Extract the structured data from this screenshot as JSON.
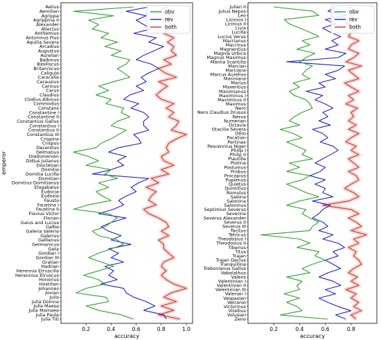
{
  "chart_data": [
    {
      "type": "line",
      "orientation": "horizontal",
      "xlabel": "accuracy",
      "ylabel": "emperor",
      "xlim": [
        0.0,
        1.05
      ],
      "xticks": [
        "0.2",
        "0.4",
        "0.6",
        "0.8",
        "1.0"
      ],
      "legend_position": "top-right",
      "series_colors": {
        "obv": "#2ca02c",
        "rev": "#1f1fcf",
        "both": "#c0392b"
      },
      "categories": [
        "Aelius",
        "Aemilian",
        "Agrippa",
        "Agrippina II",
        "Alexander",
        "Allectus",
        "Anthemius",
        "Antoninus Pius",
        "Aquilia Severa",
        "Arcadius",
        "Augustus",
        "Aurelian",
        "Balbinus",
        "Basiliscus",
        "Britannicus",
        "Caligula",
        "Caracalla",
        "Carausius",
        "Carinus",
        "Carus",
        "Claudius",
        "Clodius Albinus",
        "Commodus",
        "Constans",
        "Constantine I",
        "Constantine II",
        "Constantius Gallus",
        "Constantius I",
        "Constantius II",
        "Constantius III",
        "Crispina",
        "Crispus",
        "Decentius",
        "Delmatius",
        "Diadumenian",
        "Didius Julianus",
        "Diocletian",
        "Domitia",
        "Domitia Lucilla",
        "Domitian",
        "Domitius Domitianus",
        "Elagabalus",
        "Eudocia",
        "Eudoxia",
        "Fausta",
        "Faustina I",
        "Faustina II",
        "Flavius Victor",
        "Florian",
        "Gaius and Lucius",
        "Galba",
        "Galeria Valeria",
        "Galerius",
        "Gallienus",
        "Germanicus",
        "Geta",
        "Gordian I",
        "Gordian III",
        "Gratian",
        "Hadrian",
        "Herennia Etruscilla",
        "Herennius Etruscus",
        "Honorius",
        "Hostilian",
        "Johannes",
        "Jovian",
        "Julia",
        "Julia Domna",
        "Julia Maesa",
        "Julia Mamaea",
        "Julia Paula",
        "Julia Titi"
      ],
      "series": [
        {
          "name": "obv",
          "values": [
            0.58,
            0.1,
            0.42,
            0.22,
            0.3,
            0.25,
            0.38,
            0.32,
            0.45,
            0.35,
            0.48,
            0.4,
            0.55,
            0.52,
            0.45,
            0.5,
            0.55,
            0.42,
            0.3,
            0.38,
            0.28,
            0.4,
            0.36,
            0.5,
            0.48,
            0.55,
            0.45,
            0.4,
            0.52,
            0.46,
            0.4,
            0.32,
            0.28,
            0.1,
            0.22,
            0.3,
            0.2,
            0.4,
            0.35,
            0.45,
            0.3,
            0.38,
            0.28,
            0.33,
            0.4,
            0.22,
            0.1,
            0.38,
            0.45,
            0.4,
            0.35,
            0.25,
            0.3,
            0.45,
            0.5,
            0.4,
            0.3,
            0.22,
            0.32,
            0.42,
            0.3,
            0.18,
            0.3,
            0.35,
            0.2,
            0.12,
            0.36,
            0.38,
            0.2,
            0.3,
            0.48,
            0.58
          ]
        },
        {
          "name": "rev",
          "values": [
            0.7,
            0.52,
            0.68,
            0.6,
            0.66,
            0.72,
            0.58,
            0.76,
            0.7,
            0.82,
            0.74,
            0.66,
            0.6,
            0.72,
            0.78,
            0.7,
            0.64,
            0.68,
            0.6,
            0.66,
            0.55,
            0.5,
            0.62,
            0.56,
            0.66,
            0.7,
            0.66,
            0.66,
            0.7,
            0.58,
            0.62,
            0.64,
            0.46,
            0.38,
            0.52,
            0.45,
            0.5,
            0.4,
            0.25,
            0.7,
            0.62,
            0.56,
            0.6,
            0.52,
            0.46,
            0.5,
            0.42,
            0.3,
            0.52,
            0.4,
            0.32,
            0.38,
            0.48,
            0.4,
            0.56,
            0.38,
            0.46,
            0.4,
            0.5,
            0.35,
            0.42,
            0.38,
            0.45,
            0.32,
            0.5,
            0.52,
            0.58,
            0.68,
            0.75,
            0.66,
            0.82,
            0.84
          ]
        },
        {
          "name": "both",
          "values": [
            0.85,
            0.78,
            0.9,
            0.82,
            0.88,
            0.86,
            0.82,
            0.9,
            0.85,
            0.9,
            0.88,
            0.92,
            0.82,
            0.88,
            0.78,
            0.83,
            0.92,
            0.78,
            0.85,
            0.8,
            0.76,
            0.8,
            0.9,
            0.84,
            0.9,
            0.86,
            0.94,
            0.92,
            0.88,
            1.0,
            0.92,
            0.86,
            0.84,
            0.86,
            0.8,
            0.82,
            0.9,
            0.8,
            0.86,
            0.72,
            0.78,
            0.68,
            0.76,
            0.72,
            0.7,
            0.76,
            0.66,
            0.7,
            0.78,
            0.84,
            0.86,
            0.8,
            0.86,
            0.78,
            0.82,
            0.82,
            0.86,
            0.9,
            0.82,
            0.8,
            0.84,
            0.8,
            0.84,
            0.9,
            1.0,
            0.88,
            0.82,
            0.92,
            0.8,
            0.9,
            0.78,
            0.95
          ]
        }
      ]
    },
    {
      "type": "line",
      "orientation": "horizontal",
      "xlabel": "accuracy",
      "ylabel": "",
      "xlim": [
        0.0,
        1.0
      ],
      "xticks": [
        "0.2",
        "0.4",
        "0.6",
        "0.8"
      ],
      "legend_position": "top-right",
      "series_colors": {
        "obv": "#2ca02c",
        "rev": "#1f1fcf",
        "both": "#c0392b"
      },
      "categories": [
        "Julian II",
        "Julius Nepos",
        "Leo",
        "Licinius I",
        "Licinius II",
        "Livia",
        "Lucilla",
        "Lucius Verus",
        "Macrianus",
        "Macrinus",
        "Magnentius",
        "Magnia Urbica",
        "Magnus Maximus",
        "Manlia Scantilla",
        "Marcian",
        "Marciana",
        "Marcus Aurelius",
        "Mariniana",
        "Marius",
        "Maxentius",
        "Maximianus",
        "Maximinus I",
        "Maximinus II",
        "Maximus",
        "Nero",
        "Nero Claudius Drusus",
        "Nerva",
        "Numerian",
        "Octavia",
        "Otacilia Severa",
        "Otho",
        "Pacatian",
        "Pertinax",
        "Pescennius Niger",
        "Philip I",
        "Philip II",
        "Plautilla",
        "Plotina",
        "Postumus",
        "Probus",
        "Procopius",
        "Pupienus",
        "Quietus",
        "Quintillus",
        "Romulus",
        "Sabina",
        "Salonina",
        "Saloninus",
        "Septimius Severus",
        "Severina",
        "Severus Alexander",
        "Severus II",
        "Severus III",
        "Tacitus",
        "Tetricus",
        "Theodosius I",
        "Theodosius II",
        "Tiberius",
        "Titus",
        "Trajan",
        "Trajan Decius",
        "Tranquillina",
        "Trebonianus Gallus",
        "Vabalathus",
        "Valens",
        "Valentinian I",
        "Valentinian II",
        "Valentinian III",
        "Valerian I",
        "Vespasian",
        "Vetranio",
        "Victorinus",
        "Vitellius",
        "Volusian",
        "Zeno"
      ],
      "series": [
        {
          "name": "obv",
          "values": [
            0.2,
            0.5,
            0.55,
            0.28,
            0.32,
            0.4,
            0.48,
            0.55,
            0.42,
            0.48,
            0.38,
            0.52,
            0.45,
            0.4,
            0.5,
            0.45,
            0.42,
            0.48,
            0.35,
            0.4,
            0.32,
            0.36,
            0.45,
            0.48,
            0.5,
            0.42,
            0.36,
            0.32,
            0.4,
            0.25,
            0.35,
            0.42,
            0.3,
            0.38,
            0.45,
            0.42,
            0.5,
            0.32,
            0.4,
            0.3,
            0.48,
            0.42,
            0.3,
            0.38,
            0.45,
            0.55,
            0.4,
            0.3,
            0.45,
            0.42,
            0.48,
            0.55,
            0.5,
            0.48,
            0.1,
            0.4,
            0.48,
            0.38,
            0.55,
            0.52,
            0.6,
            0.5,
            0.42,
            0.48,
            0.3,
            0.42,
            0.38,
            0.4,
            0.28,
            0.4,
            0.3,
            0.38,
            0.42,
            0.25,
            0.62
          ]
        },
        {
          "name": "rev",
          "values": [
            0.68,
            0.62,
            0.76,
            0.6,
            0.68,
            0.58,
            0.64,
            0.72,
            0.65,
            0.7,
            0.6,
            0.76,
            0.7,
            0.3,
            0.75,
            0.7,
            0.6,
            0.68,
            0.55,
            0.6,
            0.45,
            0.58,
            0.52,
            0.6,
            0.66,
            0.58,
            0.62,
            0.55,
            0.64,
            0.5,
            0.58,
            0.62,
            0.56,
            0.66,
            0.7,
            0.64,
            0.58,
            0.52,
            0.6,
            0.56,
            0.48,
            0.6,
            0.52,
            0.6,
            0.58,
            0.66,
            0.5,
            0.64,
            0.58,
            0.55,
            0.5,
            0.58,
            0.62,
            0.55,
            0.66,
            0.58,
            0.7,
            0.75,
            0.66,
            0.7,
            0.6,
            0.66,
            0.72,
            0.62,
            0.55,
            0.66,
            0.72,
            0.6,
            0.68,
            0.55,
            0.62,
            0.7,
            0.8,
            0.68,
            0.76
          ]
        },
        {
          "name": "both",
          "values": [
            0.78,
            0.86,
            0.8,
            0.82,
            0.76,
            0.86,
            0.8,
            0.78,
            0.86,
            0.8,
            0.78,
            0.86,
            0.82,
            0.76,
            0.88,
            0.78,
            0.82,
            0.86,
            0.75,
            0.8,
            0.86,
            0.78,
            0.82,
            0.76,
            0.85,
            0.8,
            0.82,
            0.78,
            0.84,
            0.78,
            0.86,
            0.8,
            0.76,
            0.84,
            0.8,
            0.86,
            0.78,
            0.82,
            0.86,
            0.78,
            0.84,
            0.86,
            0.8,
            0.75,
            0.82,
            0.86,
            0.78,
            0.58,
            0.8,
            0.86,
            0.78,
            0.84,
            0.88,
            0.8,
            0.92,
            0.82,
            0.86,
            0.78,
            0.84,
            0.82,
            0.86,
            0.88,
            0.82,
            0.78,
            0.85,
            0.8,
            0.86,
            0.76,
            0.84,
            0.8,
            0.86,
            0.82,
            0.88,
            0.8,
            0.84
          ]
        }
      ]
    }
  ]
}
